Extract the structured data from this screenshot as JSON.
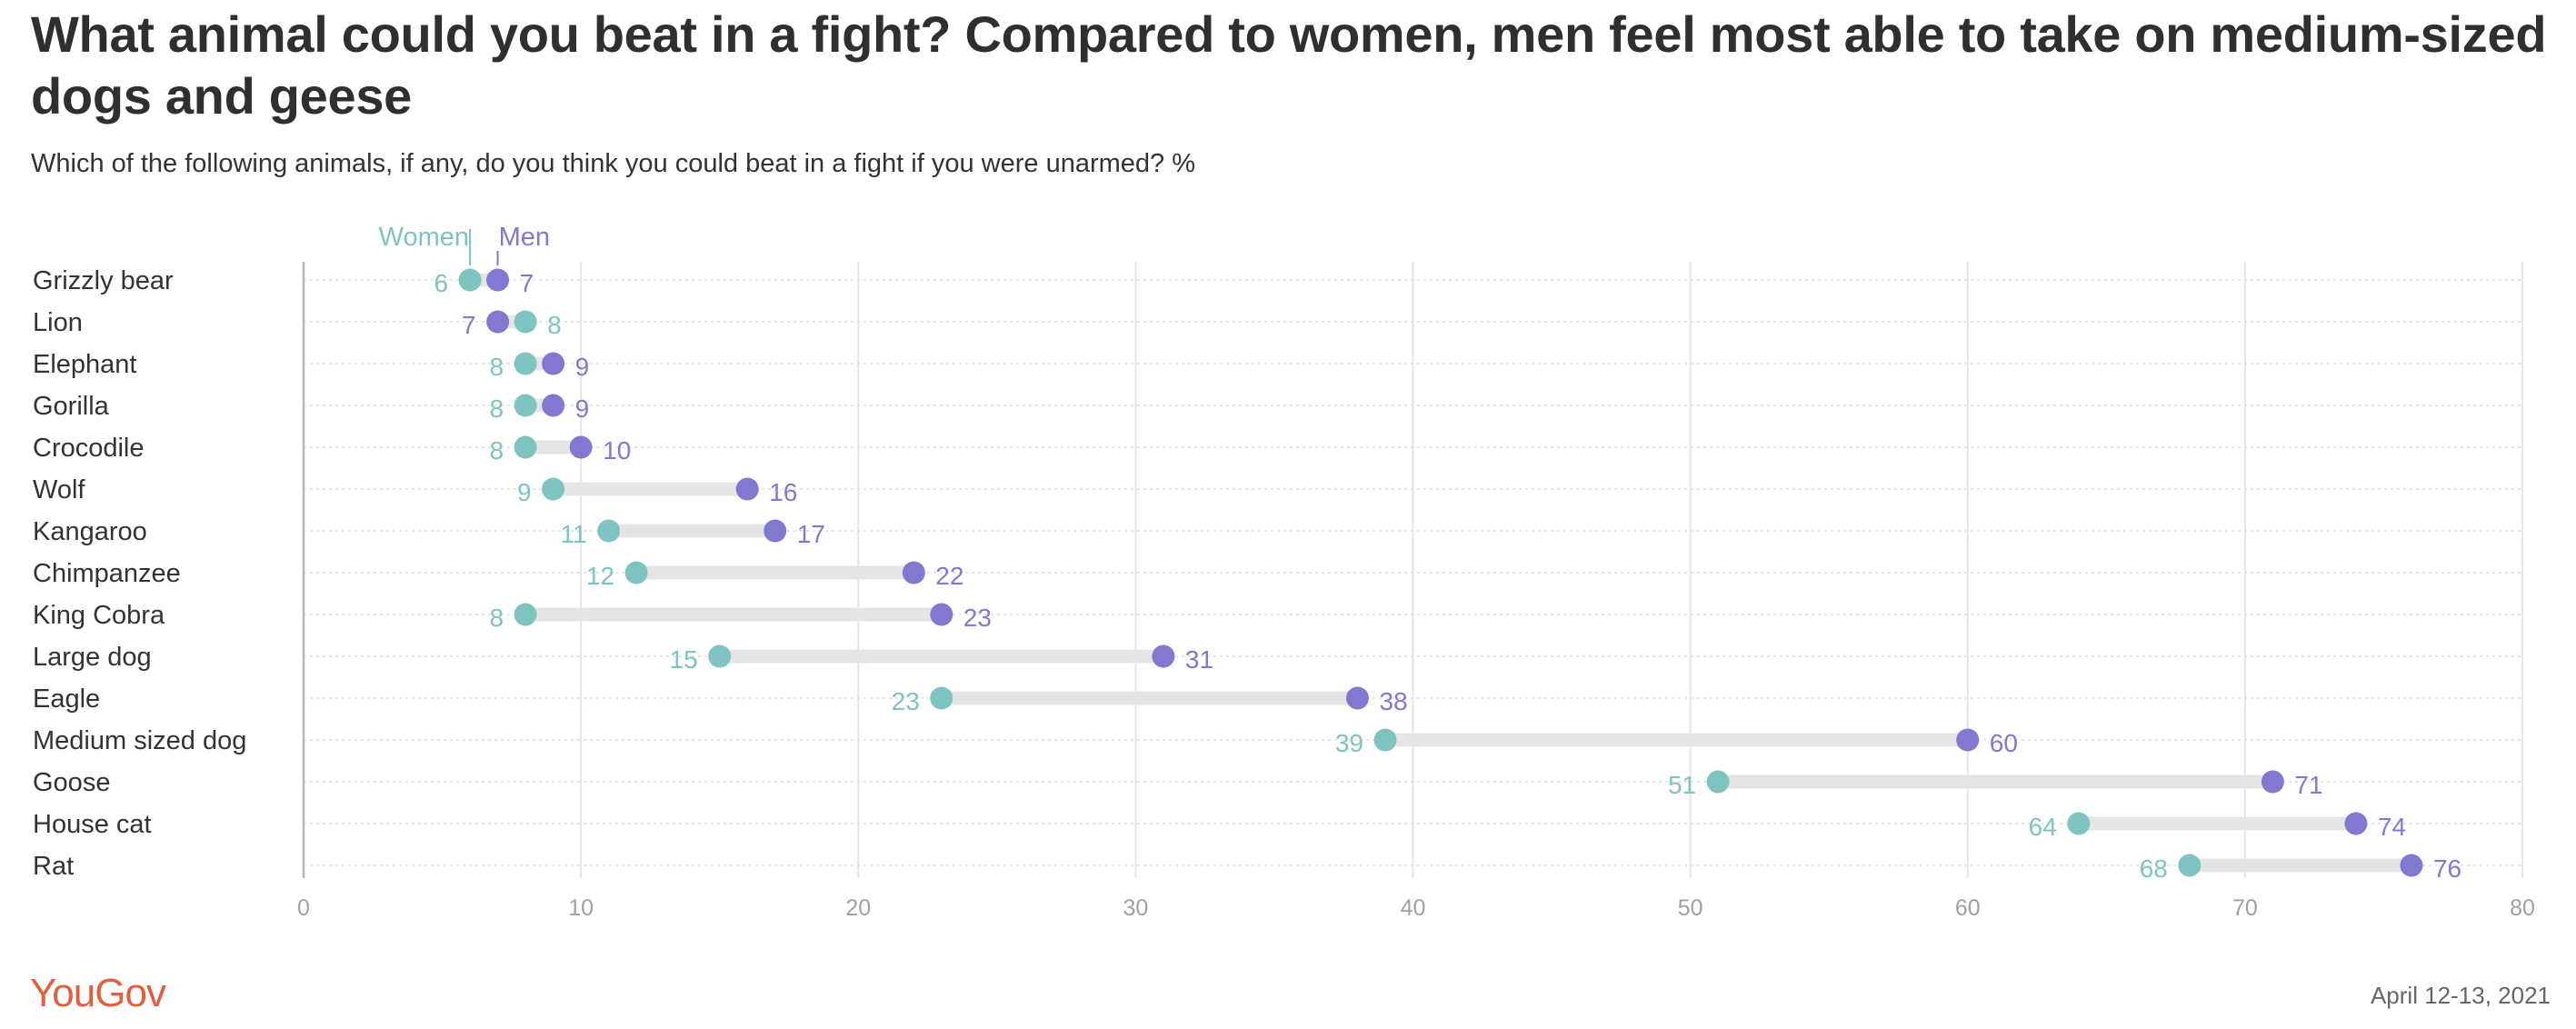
{
  "title": "What animal could you beat in a fight? Compared to women, men feel most able to take on medium-sized dogs and geese",
  "subtitle": "Which of the following animals, if any, do you think you could beat in a fight if you were unarmed? %",
  "footer": {
    "logo": "YouGov",
    "date": "April 12-13, 2021"
  },
  "colors": {
    "women": "#7ec4c0",
    "men": "#8079cf",
    "connector": "#e5e5e5",
    "grid": "#e6e6e6",
    "axis_tick_label": "#a0a0a0",
    "logo": "#e0603f"
  },
  "chart_data": {
    "type": "dumbbell",
    "categories": [
      "Grizzly bear",
      "Lion",
      "Elephant",
      "Gorilla",
      "Crocodile",
      "Wolf",
      "Kangaroo",
      "Chimpanzee",
      "King Cobra",
      "Large dog",
      "Eagle",
      "Medium sized dog",
      "Goose",
      "House cat",
      "Rat"
    ],
    "series": [
      {
        "name": "Women",
        "values": [
          6,
          8,
          8,
          8,
          8,
          9,
          11,
          12,
          8,
          15,
          23,
          39,
          51,
          64,
          68
        ]
      },
      {
        "name": "Men",
        "values": [
          7,
          7,
          9,
          9,
          10,
          16,
          17,
          22,
          23,
          31,
          38,
          60,
          71,
          74,
          76
        ]
      }
    ],
    "xlim": [
      0,
      80
    ],
    "xticks": [
      0,
      10,
      20,
      30,
      40,
      50,
      60,
      70,
      80
    ],
    "grid": true,
    "legend_placement": "top, above first row"
  }
}
